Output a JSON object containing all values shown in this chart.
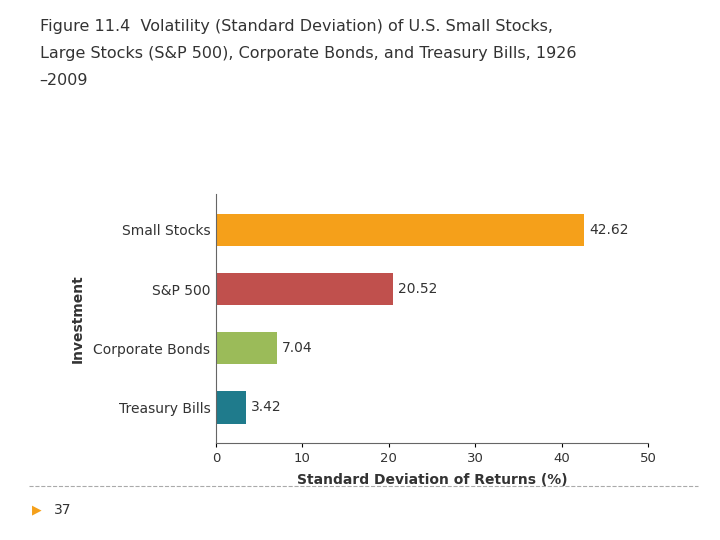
{
  "title_line1": "Figure 11.4  Volatility (Standard Deviation) of U.S. Small Stocks,",
  "title_line2": "Large Stocks (S&P 500), Corporate Bonds, and Treasury Bills, 1926",
  "title_line3": "–2009",
  "categories": [
    "Small Stocks",
    "S&P 500",
    "Corporate Bonds",
    "Treasury Bills"
  ],
  "values": [
    42.62,
    20.52,
    7.04,
    3.42
  ],
  "bar_colors": [
    "#F5A01A",
    "#C0504D",
    "#9BBB59",
    "#1F7B8C"
  ],
  "xlabel": "Standard Deviation of Returns (%)",
  "ylabel": "Investment",
  "xlim": [
    0,
    50
  ],
  "xticks": [
    0,
    10,
    20,
    30,
    40,
    50
  ],
  "background_color": "#ffffff",
  "title_fontsize": 11.5,
  "label_fontsize": 10,
  "tick_fontsize": 9.5,
  "value_fontsize": 10,
  "ylabel_fontsize": 10,
  "footer_text": "37",
  "bar_height": 0.55
}
